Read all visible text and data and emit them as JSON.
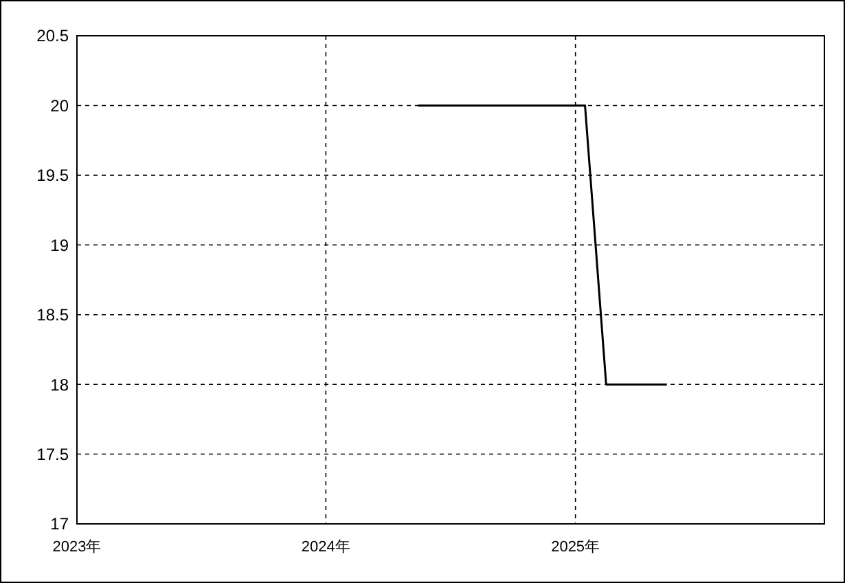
{
  "chart_data": {
    "type": "line",
    "x": [
      "2024-05-15",
      "2025-01-15",
      "2025-02-15",
      "2025-05-15"
    ],
    "series": [
      {
        "color": "#000000",
        "values": [
          20,
          20,
          18,
          18
        ]
      }
    ],
    "xlim": [
      "2023-01-01",
      "2026-01-01"
    ],
    "xticks": [
      {
        "value": "2023-01-01",
        "label": "2023年"
      },
      {
        "value": "2024-01-01",
        "label": "2024年"
      },
      {
        "value": "2025-01-01",
        "label": "2025年"
      }
    ],
    "ylim": [
      17,
      20.5
    ],
    "yticks": [
      17,
      17.5,
      18,
      18.5,
      19,
      19.5,
      20,
      20.5
    ],
    "grid": true,
    "marker": "none",
    "line_style": "solid"
  }
}
